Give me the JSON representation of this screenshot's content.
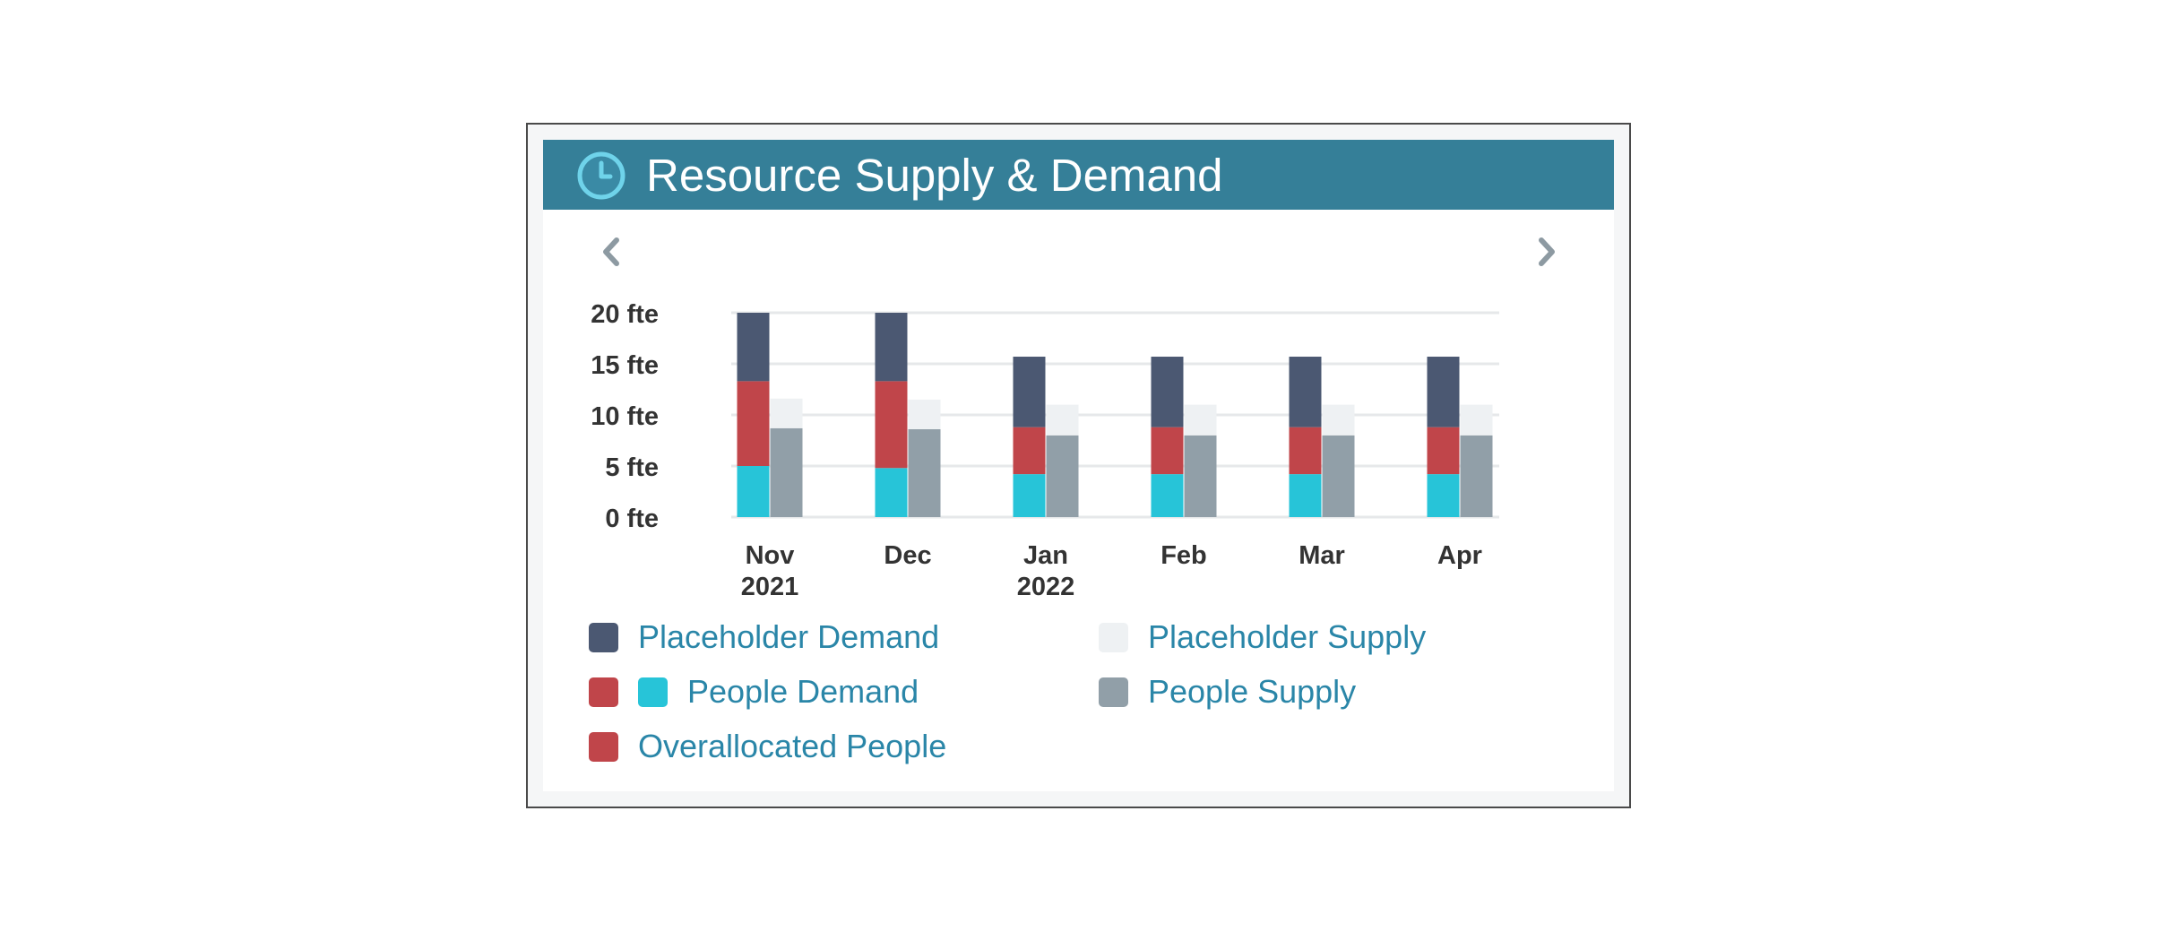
{
  "widget": {
    "title": "Resource Supply & Demand",
    "icon": "clock-icon",
    "prev_icon": "chevron-left-icon",
    "next_icon": "chevron-right-icon"
  },
  "colors": {
    "header_bg": "#357f98",
    "placeholder_demand": "#4b5872",
    "people_demand_red": "#c0454a",
    "people_demand_cyan": "#27c4d8",
    "overallocated_people": "#c0454a",
    "placeholder_supply": "#eef1f3",
    "people_supply": "#919fa8",
    "legend_text": "#2a86a8"
  },
  "legend": {
    "placeholder_demand": "Placeholder Demand",
    "placeholder_supply": "Placeholder Supply",
    "people_demand": "People Demand",
    "people_supply": "People Supply",
    "overallocated_people": "Overallocated People"
  },
  "chart_data": {
    "type": "bar",
    "stacked": true,
    "grouped": true,
    "categories": [
      [
        "Nov",
        "2021"
      ],
      [
        "Dec",
        ""
      ],
      [
        "Jan",
        "2022"
      ],
      [
        "Feb",
        ""
      ],
      [
        "Mar",
        ""
      ],
      [
        "Apr",
        ""
      ]
    ],
    "y_ticks": [
      "0 fte",
      "5 fte",
      "10 fte",
      "15 fte",
      "20 fte"
    ],
    "ylim": [
      0,
      20
    ],
    "grid": true,
    "legend_position": "bottom",
    "demand_stack": {
      "people_demand": [
        5,
        4.8,
        4.2,
        4.2,
        4.2,
        4.2
      ],
      "overallocated_people": [
        8.3,
        8.5,
        4.6,
        4.6,
        4.6,
        4.6
      ],
      "placeholder_demand": [
        6.7,
        6.7,
        6.9,
        6.9,
        6.9,
        6.9
      ]
    },
    "supply_stack": {
      "people_supply": [
        8.7,
        8.6,
        8,
        8,
        8,
        8
      ],
      "placeholder_supply": [
        2.9,
        2.9,
        3,
        3,
        3,
        3
      ]
    }
  }
}
